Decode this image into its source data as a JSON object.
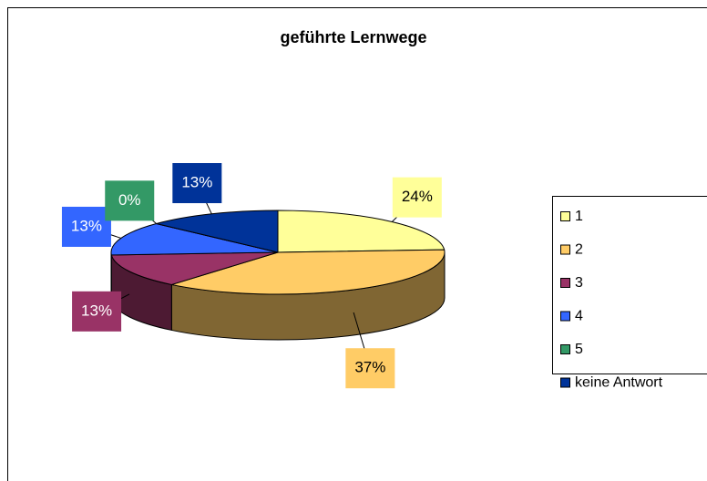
{
  "chart_data": {
    "type": "pie3d",
    "title": "geführte Lernwege",
    "categories": [
      "1",
      "2",
      "3",
      "4",
      "5",
      "keine Antwort"
    ],
    "values": [
      24,
      37,
      13,
      13,
      0,
      13
    ],
    "value_labels": [
      "24%",
      "37%",
      "13%",
      "13%",
      "0%",
      "13%"
    ],
    "colors": [
      "#ffff99",
      "#ffcc66",
      "#993366",
      "#3366ff",
      "#339966",
      "#003399"
    ],
    "legend": "right"
  }
}
